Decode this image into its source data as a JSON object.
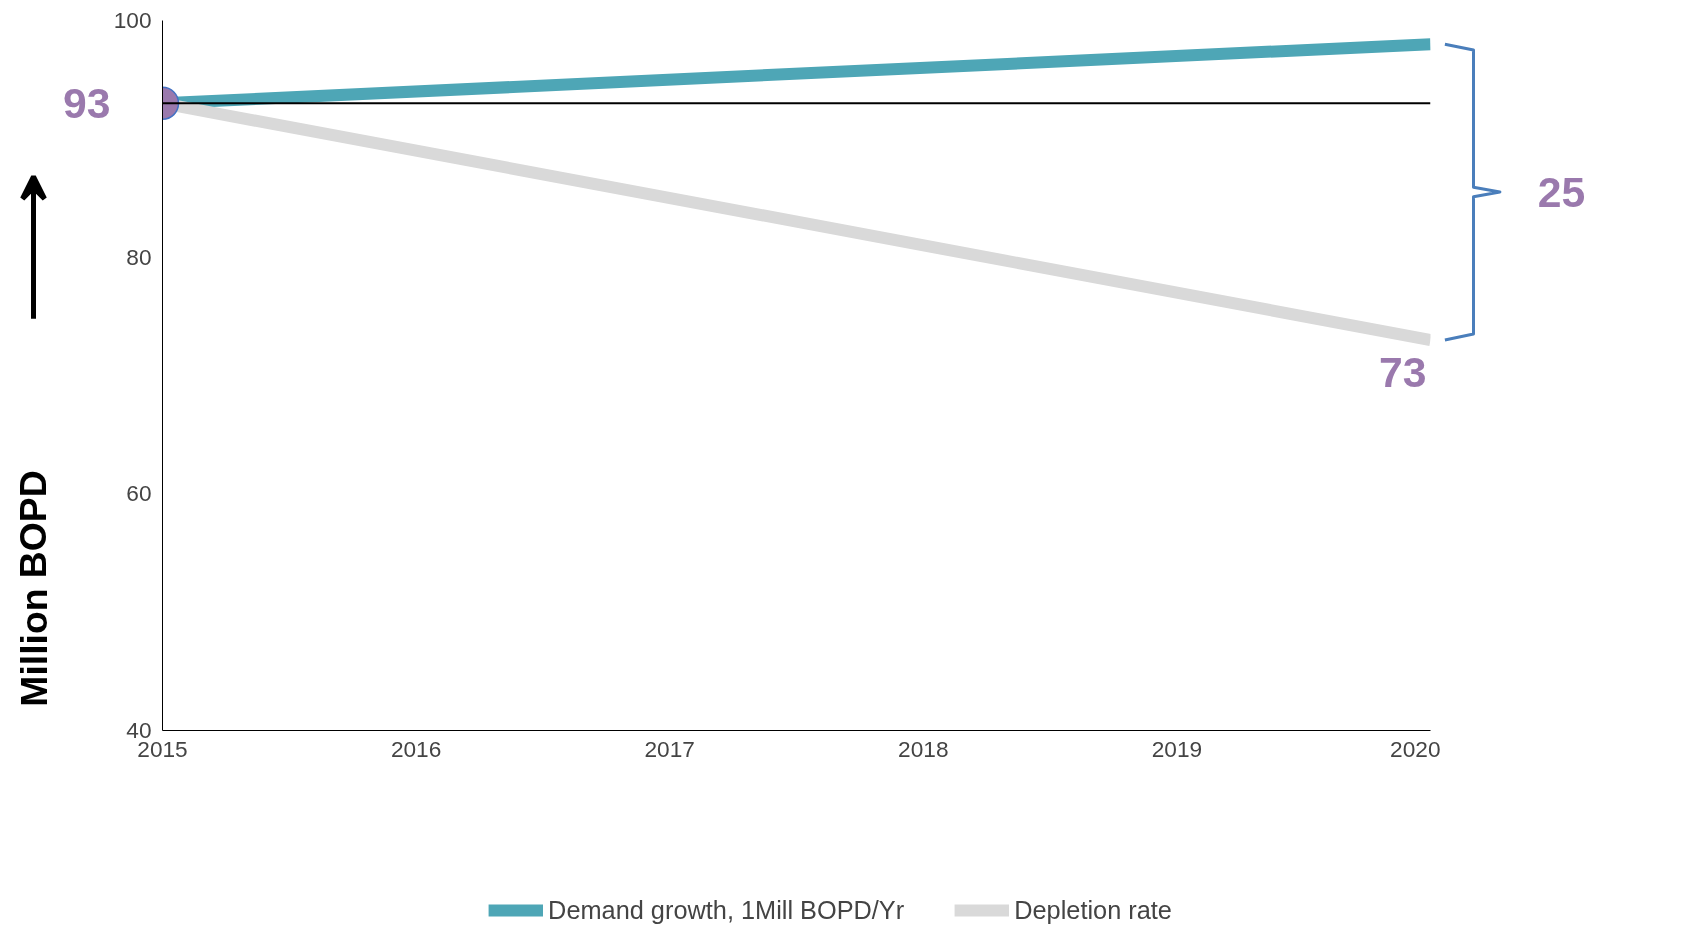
{
  "chart_data": {
    "type": "line",
    "x": [
      2015,
      2020
    ],
    "ylabel": "Million BOPD",
    "series": [
      {
        "name": "Demand growth, 1Mill BOPD/Yr",
        "color": "#4ea6b6",
        "values": [
          93,
          98
        ]
      },
      {
        "name": "Depletion rate",
        "color": "#d9d9d9",
        "values": [
          93,
          73
        ]
      },
      {
        "type": "scatter",
        "color": "#9a79ad",
        "x": [
          2015
        ],
        "values": [
          93
        ],
        "marker": "circle"
      }
    ],
    "xlim": [
      2015,
      2020
    ],
    "xticks": [
      2015,
      2016,
      2017,
      2018,
      2019,
      2020
    ],
    "ylim": [
      40,
      100
    ],
    "yticks": [
      40,
      60,
      80,
      100
    ],
    "ref_lines": [
      {
        "axis": "y",
        "value": 93,
        "color": "#000000"
      }
    ],
    "annotations": [
      {
        "text": "93",
        "x": 2015,
        "y": 93
      },
      {
        "text": "73",
        "x": 2020,
        "y": 73
      },
      "25"
    ],
    "grid": false,
    "legend": "bottom",
    "line_style": "solid"
  }
}
